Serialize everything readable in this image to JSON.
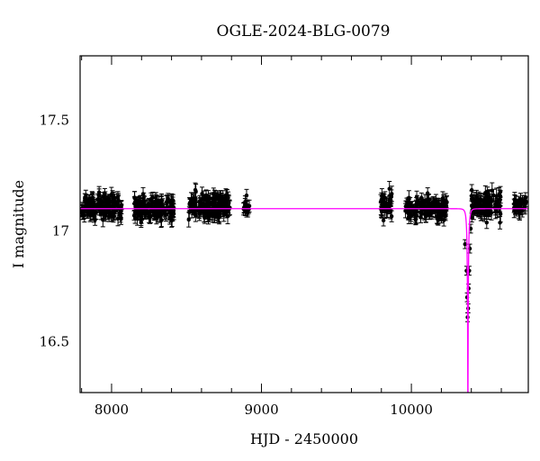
{
  "chart_data": {
    "type": "scatter",
    "title": "OGLE-2024-BLG-0079",
    "xlabel": "HJD - 2450000",
    "ylabel": "I magnitude",
    "xlim": [
      7790,
      10780
    ],
    "ylim": [
      17.79,
      16.27
    ],
    "y_inverted": true,
    "x_ticks": [
      8000,
      9000,
      10000
    ],
    "y_ticks": [
      16.5,
      17,
      17.5
    ],
    "y_tick_labels": [
      "16.5",
      "17",
      "17.5"
    ],
    "baseline_magnitude": 17.1,
    "peak": {
      "x": 10377,
      "y": 16.6
    },
    "series": [
      {
        "kind": "observations",
        "color": "#000000",
        "segments": [
          {
            "x_range": [
              7795,
              8070
            ],
            "mag_mean": 17.11,
            "scatter": 0.025,
            "errbar": 0.025,
            "count": 150
          },
          {
            "x_range": [
              8150,
              8420
            ],
            "mag_mean": 17.1,
            "scatter": 0.025,
            "errbar": 0.025,
            "count": 150
          },
          {
            "x_range": [
              8510,
              8790
            ],
            "mag_mean": 17.11,
            "scatter": 0.028,
            "errbar": 0.027,
            "count": 160
          },
          {
            "x_range": [
              8880,
              8920
            ],
            "mag_mean": 17.11,
            "scatter": 0.02,
            "errbar": 0.022,
            "count": 14
          },
          {
            "x_range": [
              9790,
              9870
            ],
            "mag_mean": 17.11,
            "scatter": 0.03,
            "errbar": 0.028,
            "count": 40
          },
          {
            "x_range": [
              9960,
              10240
            ],
            "mag_mean": 17.1,
            "scatter": 0.025,
            "errbar": 0.025,
            "count": 150
          },
          {
            "x_range": [
              10400,
              10600
            ],
            "mag_mean": 17.12,
            "scatter": 0.03,
            "errbar": 0.028,
            "count": 100
          },
          {
            "x_range": [
              10680,
              10770
            ],
            "mag_mean": 17.11,
            "scatter": 0.025,
            "errbar": 0.025,
            "count": 40
          }
        ],
        "event_points": [
          {
            "x": 10358,
            "y": 16.94
          },
          {
            "x": 10368,
            "y": 16.82
          },
          {
            "x": 10372,
            "y": 16.7
          },
          {
            "x": 10375,
            "y": 16.61
          },
          {
            "x": 10379,
            "y": 16.65
          },
          {
            "x": 10382,
            "y": 16.74
          },
          {
            "x": 10386,
            "y": 16.82
          },
          {
            "x": 10390,
            "y": 16.92
          },
          {
            "x": 10396,
            "y": 17.01
          },
          {
            "x": 10403,
            "y": 17.06
          },
          {
            "x": 10415,
            "y": 17.09
          },
          {
            "x": 10420,
            "y": 17.12
          },
          {
            "x": 10028,
            "y": 17.05
          }
        ]
      },
      {
        "kind": "model",
        "color": "#ff00ff",
        "model_type": "paczynski",
        "params": {
          "t0": 10377,
          "tE": 12,
          "u0": 0.1,
          "baseline": 17.1,
          "fs": 0.15
        }
      }
    ],
    "grid": false
  }
}
